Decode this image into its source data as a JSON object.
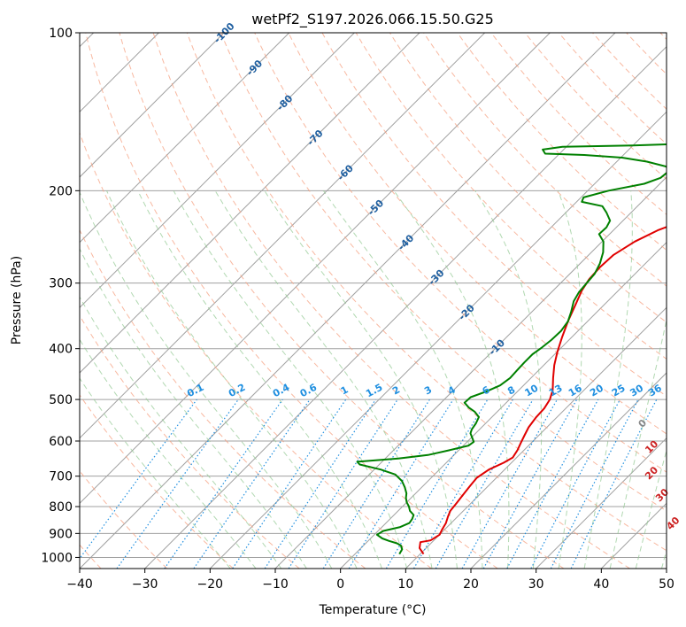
{
  "chart_data": {
    "type": "line",
    "title": "wetPf2_S197.2026.066.15.50.G25",
    "xlabel": "Temperature (°C)",
    "ylabel": "Pressure (hPa)",
    "xlim": [
      -40,
      50
    ],
    "ylim": [
      1050,
      100
    ],
    "x_ticks": [
      "−40",
      "−30",
      "−20",
      "−10",
      "0",
      "10",
      "20",
      "30",
      "40",
      "50"
    ],
    "y_ticks": [
      "100",
      "200",
      "300",
      "400",
      "500",
      "600",
      "700",
      "800",
      "900",
      "1000"
    ],
    "grid": true,
    "series": [
      {
        "name": "Temperature",
        "color": "#e00000",
        "points": [
          [
            10.5,
            985
          ],
          [
            9.0,
            960
          ],
          [
            8.2,
            935
          ],
          [
            9.5,
            928
          ],
          [
            10.0,
            905
          ],
          [
            9.6,
            885
          ],
          [
            9.2,
            860
          ],
          [
            8.5,
            835
          ],
          [
            8.0,
            815
          ],
          [
            7.8,
            790
          ],
          [
            7.5,
            760
          ],
          [
            7.2,
            730
          ],
          [
            7.0,
            705
          ],
          [
            7.6,
            680
          ],
          [
            8.8,
            660
          ],
          [
            9.4,
            645
          ],
          [
            9.0,
            625
          ],
          [
            8.4,
            605
          ],
          [
            7.8,
            585
          ],
          [
            7.2,
            565
          ],
          [
            6.8,
            540
          ],
          [
            6.7,
            520
          ],
          [
            6.2,
            500
          ],
          [
            5.2,
            480
          ],
          [
            3.4,
            455
          ],
          [
            1.6,
            430
          ],
          [
            0.0,
            405
          ],
          [
            -1.5,
            380
          ],
          [
            -3.0,
            355
          ],
          [
            -4.4,
            330
          ],
          [
            -5.6,
            310
          ],
          [
            -6.2,
            295
          ],
          [
            -6.4,
            280
          ],
          [
            -6.2,
            265
          ],
          [
            -5.0,
            250
          ],
          [
            -3.2,
            238
          ],
          [
            -0.8,
            228
          ],
          [
            2.0,
            218
          ],
          [
            4.5,
            210
          ],
          [
            6.8,
            200
          ],
          [
            9.0,
            190
          ],
          [
            11.8,
            180
          ],
          [
            14.0,
            170
          ],
          [
            16.0,
            160
          ],
          [
            17.6,
            150
          ],
          [
            19.6,
            140
          ],
          [
            21.2,
            132
          ],
          [
            22.4,
            124
          ],
          [
            24.2,
            117
          ],
          [
            26.6,
            110
          ],
          [
            29.0,
            105
          ],
          [
            31.0,
            100
          ]
        ]
      },
      {
        "name": "Dewpoint",
        "color": "#008000",
        "points": [
          [
            6.8,
            985
          ],
          [
            6.5,
            965
          ],
          [
            5.8,
            950
          ],
          [
            4.8,
            940
          ],
          [
            3.2,
            930
          ],
          [
            1.8,
            920
          ],
          [
            0.4,
            905
          ],
          [
            0.8,
            890
          ],
          [
            2.8,
            875
          ],
          [
            3.6,
            860
          ],
          [
            3.4,
            845
          ],
          [
            3.0,
            830
          ],
          [
            1.8,
            815
          ],
          [
            1.0,
            800
          ],
          [
            0.0,
            785
          ],
          [
            -0.8,
            770
          ],
          [
            -1.4,
            755
          ],
          [
            -2.6,
            735
          ],
          [
            -4.0,
            715
          ],
          [
            -6.0,
            695
          ],
          [
            -9.0,
            680
          ],
          [
            -13.0,
            665
          ],
          [
            -13.8,
            657
          ],
          [
            -8.0,
            648
          ],
          [
            -4.0,
            638
          ],
          [
            -1.5,
            625
          ],
          [
            0.8,
            612
          ],
          [
            1.0,
            602
          ],
          [
            0.2,
            592
          ],
          [
            -0.8,
            580
          ],
          [
            -1.2,
            570
          ],
          [
            -1.5,
            555
          ],
          [
            -2.0,
            540
          ],
          [
            -3.4,
            528
          ],
          [
            -5.0,
            518
          ],
          [
            -6.4,
            507
          ],
          [
            -6.3,
            495
          ],
          [
            -4.8,
            483
          ],
          [
            -3.6,
            470
          ],
          [
            -3.2,
            455
          ],
          [
            -3.3,
            440
          ],
          [
            -3.4,
            425
          ],
          [
            -3.4,
            410
          ],
          [
            -3.0,
            398
          ],
          [
            -2.7,
            385
          ],
          [
            -2.6,
            370
          ],
          [
            -3.0,
            355
          ],
          [
            -4.0,
            340
          ],
          [
            -5.2,
            325
          ],
          [
            -5.8,
            312
          ],
          [
            -6.0,
            300
          ],
          [
            -6.2,
            288
          ],
          [
            -7.0,
            275
          ],
          [
            -8.2,
            262
          ],
          [
            -9.8,
            250
          ],
          [
            -11.6,
            242
          ],
          [
            -11.5,
            235
          ],
          [
            -12.0,
            228
          ],
          [
            -13.8,
            220
          ],
          [
            -15.4,
            214
          ],
          [
            -19.2,
            210
          ],
          [
            -19.6,
            206
          ],
          [
            -16.8,
            200
          ],
          [
            -12.4,
            194
          ],
          [
            -10.8,
            189
          ],
          [
            -10.6,
            184
          ],
          [
            -11.6,
            180
          ],
          [
            -15.4,
            176
          ],
          [
            -19.8,
            173
          ],
          [
            -26.0,
            171
          ],
          [
            -32.2,
            170
          ],
          [
            -33.2,
            167
          ],
          [
            -30.6,
            165
          ],
          [
            -20.0,
            164
          ],
          [
            -14.0,
            163
          ],
          [
            -10.6,
            162
          ],
          [
            -10.4,
            158
          ],
          [
            -10.2,
            154
          ],
          [
            -10.4,
            150
          ],
          [
            -10.2,
            146
          ],
          [
            -10.2,
            142
          ],
          [
            -10.2,
            138
          ],
          [
            -9.8,
            134
          ],
          [
            -8.4,
            130
          ],
          [
            -7.2,
            126
          ],
          [
            -5.8,
            121
          ],
          [
            -4.4,
            116
          ],
          [
            -2.8,
            110
          ],
          [
            -1.4,
            105
          ],
          [
            -0.8,
            100
          ]
        ]
      }
    ],
    "dry_adiabat_labels": [
      "-100",
      "-90",
      "-80",
      "-70",
      "-60",
      "-50",
      "-40",
      "-30",
      "-20",
      "-10"
    ],
    "moist_adiabat_labels": [
      "0",
      "10",
      "20",
      "30",
      "40"
    ],
    "mixing_ratio_labels": [
      "0.1",
      "0.2",
      "0.4",
      "0.6",
      "1",
      "1.5",
      "2",
      "3",
      "4",
      "6",
      "8",
      "10",
      "13",
      "16",
      "20",
      "25",
      "30",
      "36"
    ],
    "colors": {
      "temperature": "#e00000",
      "dewpoint": "#008000",
      "isotherm": "#a0a0a0",
      "dry_adiabat": "#f5a080",
      "moist_adiabat": "#90c890",
      "mixing_ratio": "#1f8fe0"
    }
  }
}
